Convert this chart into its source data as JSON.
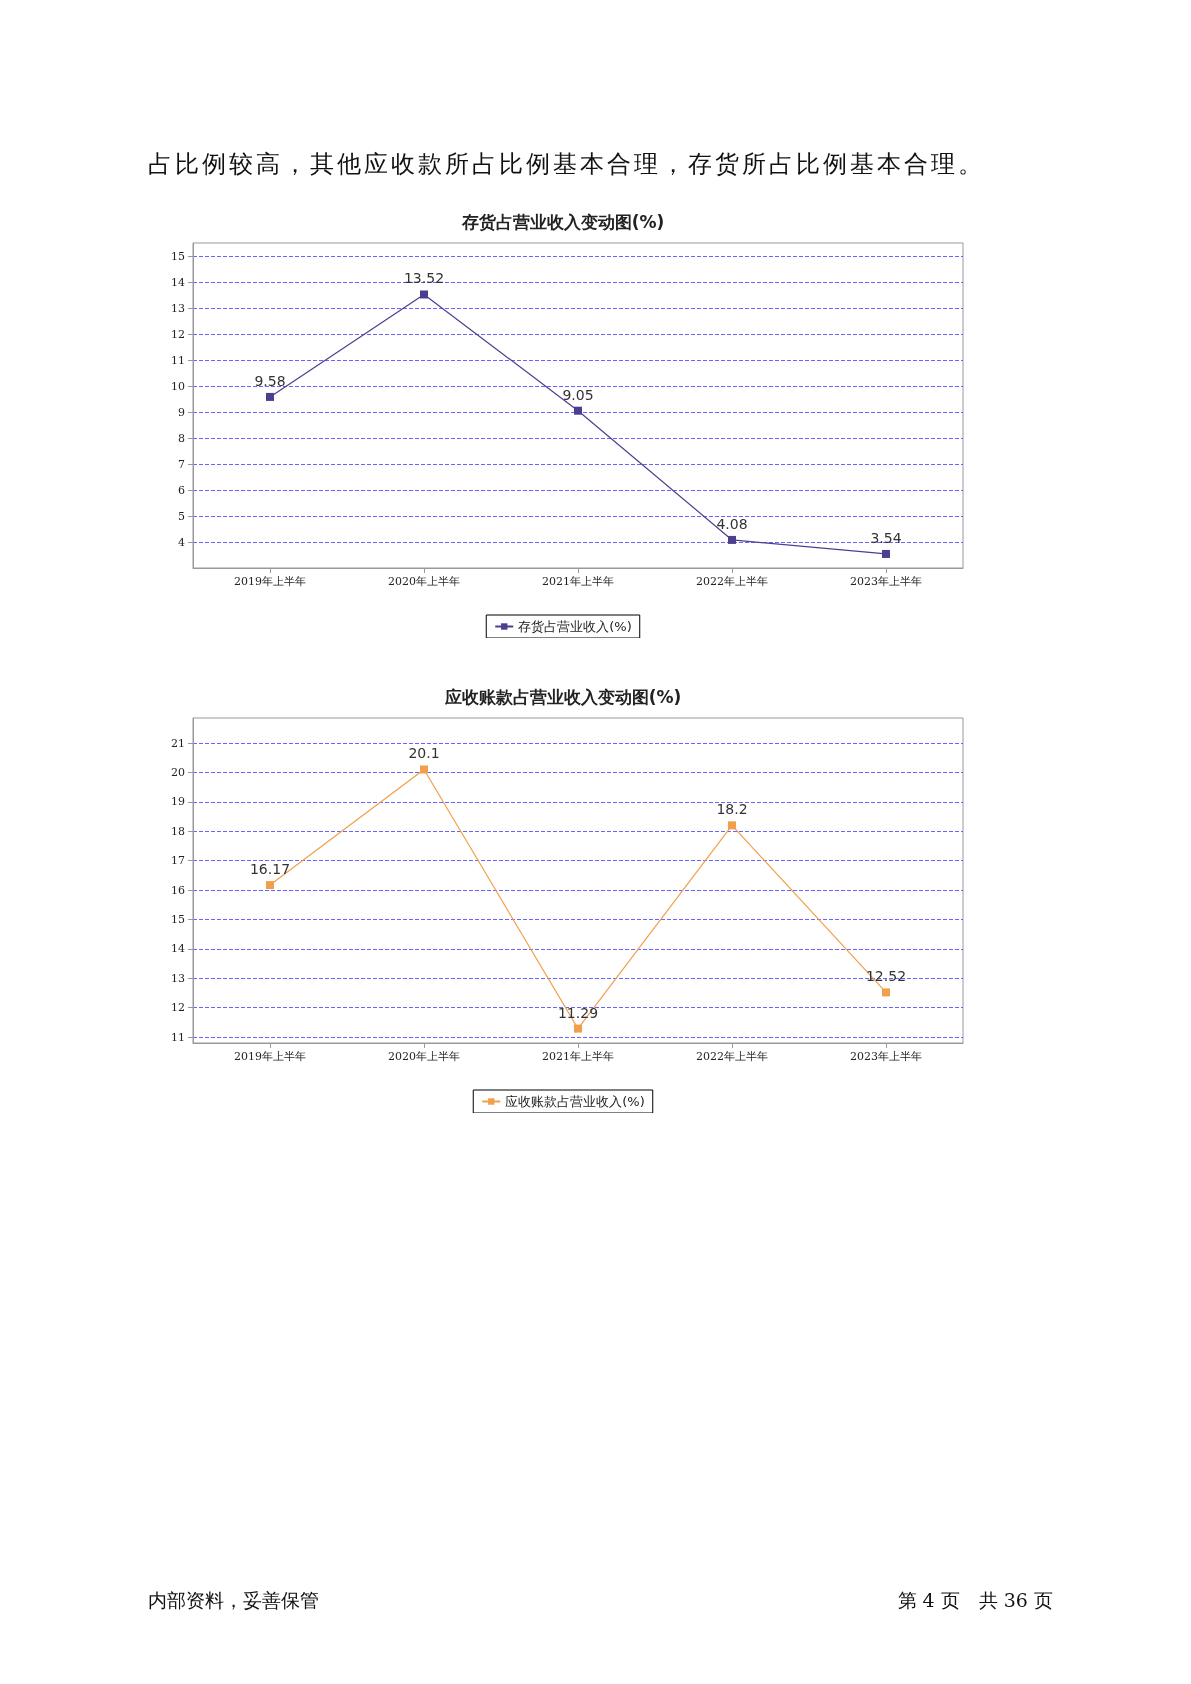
{
  "chart_data": [
    {
      "type": "line",
      "title": "存货占营业收入变动图(%)",
      "categories": [
        "2019年上半年",
        "2020年上半年",
        "2021年上半年",
        "2022年上半年",
        "2023年上半年"
      ],
      "series": [
        {
          "name": "存货占营业收入(%)",
          "color": "#4b3f8f",
          "values": [
            9.58,
            13.52,
            9.05,
            4.08,
            3.54
          ]
        }
      ],
      "ylim": [
        3,
        15.5
      ],
      "yticks": [
        4,
        5,
        6,
        7,
        8,
        9,
        10,
        11,
        12,
        13,
        14,
        15
      ],
      "grid": "y",
      "legend": "bottom",
      "marker": "square",
      "line_style": "solid",
      "data_labels": true,
      "annotations": [
        "占比例较高，其他应收款所占比例基本合理，存货所占比例基本合理。"
      ]
    },
    {
      "type": "line",
      "title": "应收账款占营业收入变动图(%)",
      "categories": [
        "2019年上半年",
        "2020年上半年",
        "2021年上半年",
        "2022年上半年",
        "2023年上半年"
      ],
      "series": [
        {
          "name": "应收账款占营业收入(%)",
          "color": "#f0a04b",
          "values": [
            16.17,
            20.1,
            11.29,
            18.2,
            12.52
          ]
        }
      ],
      "ylim": [
        10.8,
        21.85
      ],
      "yticks": [
        11,
        12,
        13,
        14,
        15,
        16,
        17,
        18,
        19,
        20,
        21
      ],
      "grid": "y",
      "legend": "bottom",
      "marker": "square",
      "line_style": "solid",
      "data_labels": true,
      "annotations": [
        "内部资料，妥善保管",
        "第 4 页　共 36 页"
      ]
    }
  ]
}
